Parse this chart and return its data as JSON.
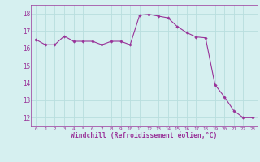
{
  "x": [
    0,
    1,
    2,
    3,
    4,
    5,
    6,
    7,
    8,
    9,
    10,
    11,
    12,
    13,
    14,
    15,
    16,
    17,
    18,
    19,
    20,
    21,
    22,
    23
  ],
  "y": [
    16.5,
    16.2,
    16.2,
    16.7,
    16.4,
    16.4,
    16.4,
    16.2,
    16.4,
    16.4,
    16.2,
    17.9,
    17.95,
    17.85,
    17.75,
    17.25,
    16.9,
    16.65,
    16.6,
    13.9,
    13.2,
    12.4,
    12.0,
    12.0
  ],
  "line_color": "#993399",
  "marker": "D",
  "marker_size": 1.8,
  "bg_color": "#d6f0f0",
  "grid_color": "#b8dede",
  "xlabel": "Windchill (Refroidissement éolien,°C)",
  "xlabel_color": "#993399",
  "tick_color": "#993399",
  "ylim": [
    11.5,
    18.5
  ],
  "xlim": [
    -0.5,
    23.5
  ],
  "yticks": [
    12,
    13,
    14,
    15,
    16,
    17,
    18
  ],
  "xticks": [
    0,
    1,
    2,
    3,
    4,
    5,
    6,
    7,
    8,
    9,
    10,
    11,
    12,
    13,
    14,
    15,
    16,
    17,
    18,
    19,
    20,
    21,
    22,
    23
  ],
  "xtick_fontsize": 4.2,
  "ytick_fontsize": 5.5,
  "xlabel_fontsize": 5.8
}
